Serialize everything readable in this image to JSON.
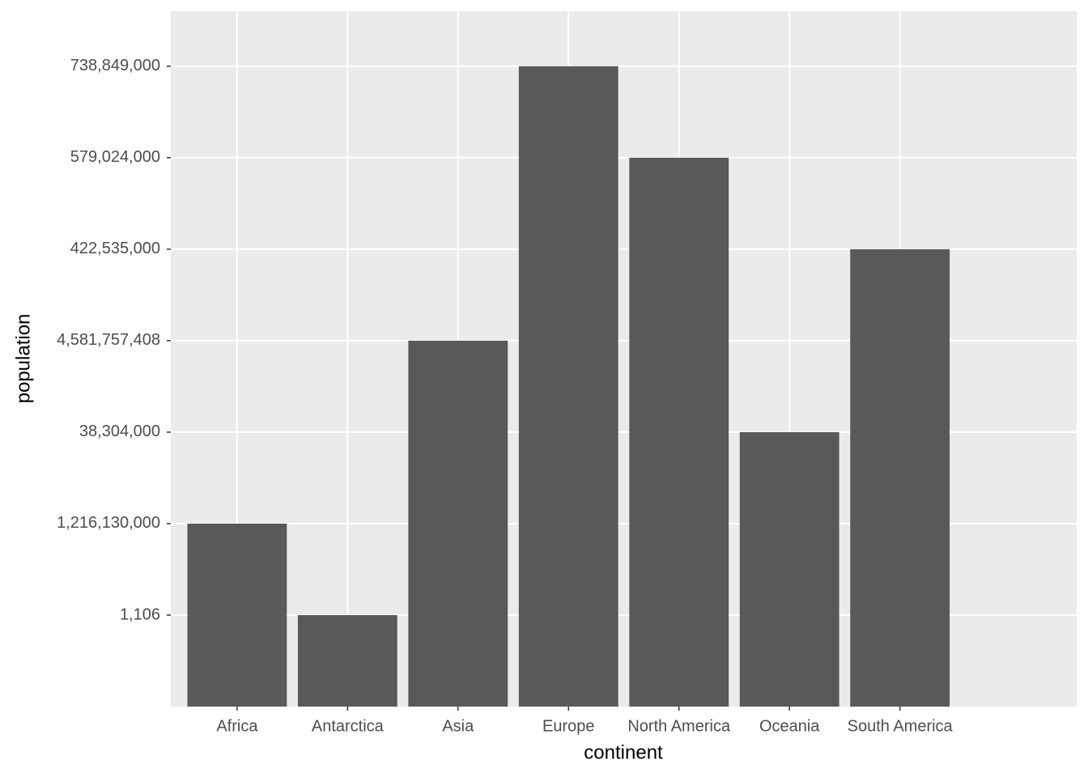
{
  "chart_data": {
    "type": "bar",
    "x_label": "continent",
    "y_label": "population",
    "categories": [
      "Africa",
      "Antarctica",
      "Asia",
      "Europe",
      "North America",
      "Oceania",
      "South America"
    ],
    "ycategories": [
      "1,106",
      "1,216,130,000",
      "38,304,000",
      "4,581,757,408",
      "422,535,000",
      "579,024,000",
      "738,849,000"
    ],
    "values": [
      "1,216,130,000",
      "1,106",
      "4,581,757,408",
      "738,849,000",
      "579,024,000",
      "38,304,000",
      "422,535,000"
    ],
    "color": "#595959",
    "grid": true
  }
}
